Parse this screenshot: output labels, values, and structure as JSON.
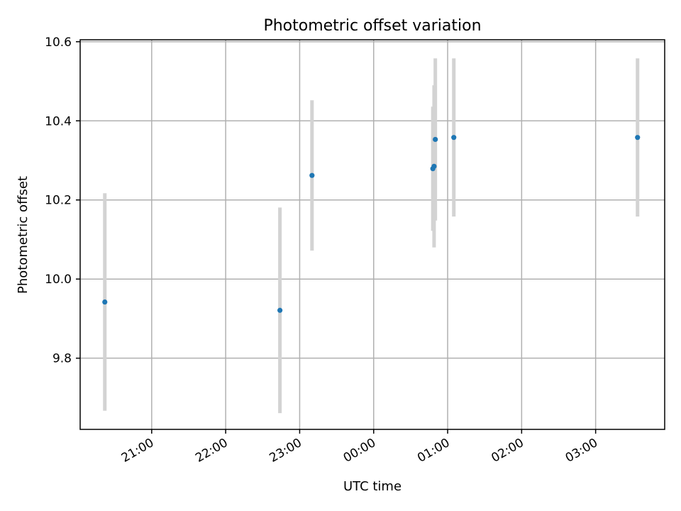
{
  "chart_data": {
    "type": "scatter",
    "title": "Photometric offset variation",
    "xlabel": "UTC time",
    "ylabel": "Photometric offset",
    "x_tick_labels": [
      "21:00",
      "22:00",
      "23:00",
      "00:00",
      "01:00",
      "02:00",
      "03:00"
    ],
    "y_tick_labels": [
      "9.8",
      "10.0",
      "10.2",
      "10.4",
      "10.6"
    ],
    "xlim": [
      "20:02",
      "03:56"
    ],
    "ylim": [
      9.62,
      10.605
    ],
    "grid": true,
    "error_bar_color": "#d3d3d3",
    "point_color": "#1f77b4",
    "points": [
      {
        "x": "20:22",
        "y": 9.942,
        "err": 0.275
      },
      {
        "x": "22:44",
        "y": 9.921,
        "err": 0.26
      },
      {
        "x": "23:10",
        "y": 10.262,
        "err": 0.19
      },
      {
        "x": "00:48",
        "y": 10.279,
        "err": 0.157
      },
      {
        "x": "00:49",
        "y": 10.285,
        "err": 0.205
      },
      {
        "x": "00:50",
        "y": 10.353,
        "err": 0.205
      },
      {
        "x": "01:05",
        "y": 10.358,
        "err": 0.2
      },
      {
        "x": "03:34",
        "y": 10.358,
        "err": 0.2
      }
    ]
  }
}
